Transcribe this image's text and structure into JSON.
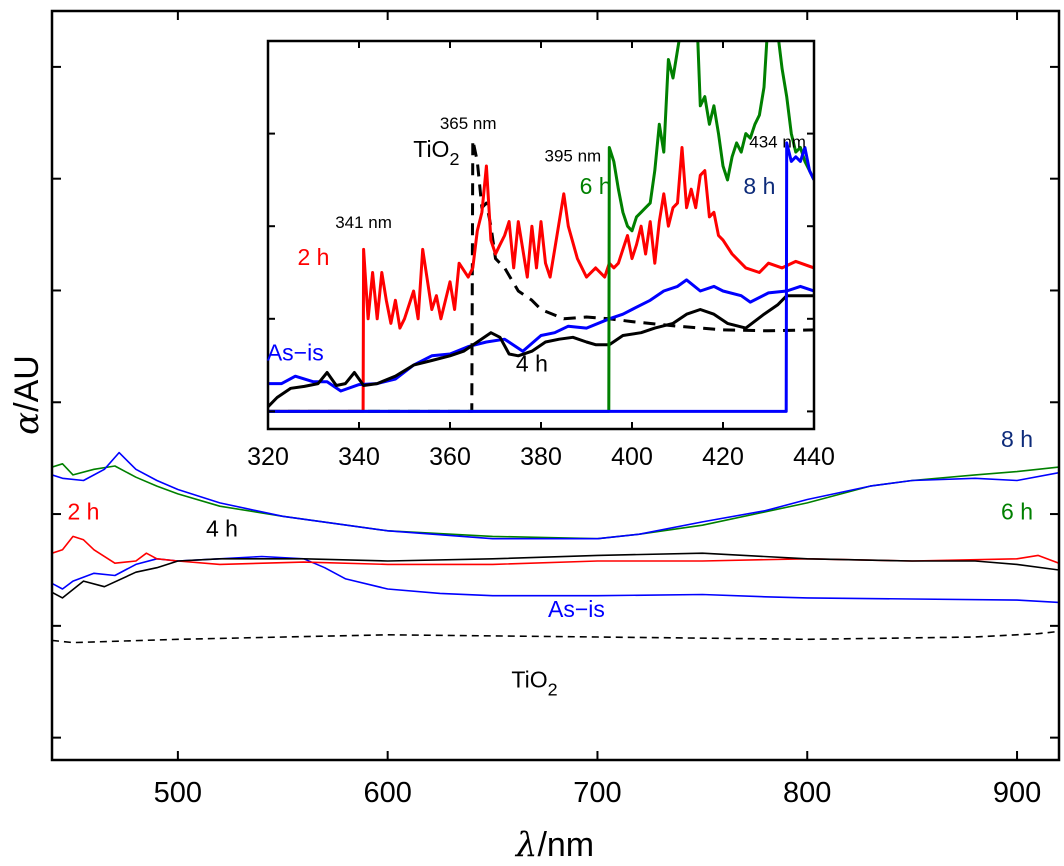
{
  "chart_data": [
    {
      "id": "main",
      "type": "line",
      "title": "",
      "xlabel": "λ/nm",
      "ylabel": "α/AU",
      "xlim": [
        440,
        920
      ],
      "ylim": [
        -0.2,
        6.5
      ],
      "xticks": [
        500,
        600,
        700,
        800,
        900
      ],
      "xtick_labels": [
        "500",
        "600",
        "700",
        "800",
        "900"
      ],
      "yticks": [
        0,
        1,
        2,
        3,
        4,
        5,
        6
      ],
      "ytick_labels_shown": false,
      "grid": false,
      "series": [
        {
          "name": "TiO2",
          "label": "TiO",
          "label_sub": "2",
          "color": "#000000",
          "dashed": true,
          "x": [
            440,
            450,
            500,
            600,
            700,
            800,
            880,
            910,
            920
          ],
          "y": [
            0.87,
            0.85,
            0.88,
            0.92,
            0.9,
            0.88,
            0.9,
            0.93,
            0.95
          ]
        },
        {
          "name": "As-is",
          "label": "As−is",
          "color": "#0000ff",
          "dashed": false,
          "x": [
            440,
            445,
            450,
            460,
            470,
            480,
            490,
            500,
            520,
            540,
            560,
            570,
            580,
            600,
            625,
            650,
            700,
            750,
            780,
            800,
            850,
            900,
            920
          ],
          "y": [
            1.38,
            1.33,
            1.4,
            1.47,
            1.45,
            1.55,
            1.6,
            1.58,
            1.6,
            1.62,
            1.6,
            1.52,
            1.42,
            1.33,
            1.29,
            1.27,
            1.27,
            1.28,
            1.26,
            1.25,
            1.24,
            1.23,
            1.21
          ]
        },
        {
          "name": "2 h",
          "label": "2 h",
          "color": "#ff0000",
          "dashed": false,
          "x": [
            440,
            445,
            450,
            455,
            460,
            470,
            480,
            485,
            490,
            500,
            520,
            560,
            600,
            650,
            700,
            750,
            800,
            850,
            900,
            910,
            920
          ],
          "y": [
            1.65,
            1.68,
            1.8,
            1.77,
            1.68,
            1.56,
            1.58,
            1.65,
            1.6,
            1.58,
            1.55,
            1.57,
            1.55,
            1.55,
            1.58,
            1.58,
            1.6,
            1.58,
            1.6,
            1.63,
            1.56
          ]
        },
        {
          "name": "4 h",
          "label": "4 h",
          "color": "#000000",
          "dashed": false,
          "x": [
            440,
            445,
            455,
            465,
            480,
            490,
            500,
            520,
            560,
            600,
            650,
            700,
            750,
            800,
            850,
            880,
            900,
            920
          ],
          "y": [
            1.3,
            1.25,
            1.4,
            1.35,
            1.48,
            1.52,
            1.58,
            1.6,
            1.6,
            1.58,
            1.6,
            1.63,
            1.65,
            1.6,
            1.58,
            1.58,
            1.55,
            1.5
          ]
        },
        {
          "name": "6 h",
          "label": "6 h",
          "color": "#008000",
          "dashed": false,
          "x": [
            440,
            445,
            450,
            460,
            470,
            480,
            490,
            500,
            520,
            550,
            600,
            650,
            700,
            720,
            750,
            780,
            800,
            830,
            850,
            880,
            900,
            920
          ],
          "y": [
            2.42,
            2.45,
            2.35,
            2.4,
            2.43,
            2.33,
            2.25,
            2.18,
            2.07,
            1.98,
            1.85,
            1.8,
            1.78,
            1.82,
            1.9,
            2.02,
            2.1,
            2.25,
            2.3,
            2.35,
            2.38,
            2.42
          ]
        },
        {
          "name": "8 h",
          "label": "8 h",
          "color": "#0000ff",
          "label_color": "#0d2b7a",
          "dashed": false,
          "x": [
            440,
            445,
            455,
            465,
            472,
            480,
            490,
            500,
            520,
            550,
            600,
            650,
            700,
            720,
            750,
            780,
            800,
            830,
            850,
            880,
            900,
            920
          ],
          "y": [
            2.35,
            2.32,
            2.3,
            2.4,
            2.55,
            2.4,
            2.3,
            2.22,
            2.1,
            1.98,
            1.85,
            1.78,
            1.78,
            1.82,
            1.93,
            2.03,
            2.13,
            2.25,
            2.3,
            2.32,
            2.3,
            2.37
          ]
        }
      ],
      "annotations": [
        {
          "text": "2 h",
          "color": "#ff0000",
          "x": 455,
          "y": 1.95
        },
        {
          "text": "4 h",
          "color": "#000000",
          "x": 521,
          "y": 1.8
        },
        {
          "text": "As−is",
          "color": "#0000ff",
          "x": 690,
          "y": 1.08
        },
        {
          "text": "TiO",
          "sub": "2",
          "color": "#000000",
          "x": 670,
          "y": 0.45
        },
        {
          "text": "8 h",
          "color": "#0d2b7a",
          "x": 900,
          "y": 2.6
        },
        {
          "text": "6 h",
          "color": "#008000",
          "x": 900,
          "y": 1.95
        }
      ]
    },
    {
      "id": "inset",
      "type": "line",
      "title": "",
      "xlabel": "",
      "ylabel": "",
      "xlim": [
        320,
        440
      ],
      "ylim": [
        -0.19,
        4.0
      ],
      "xticks": [
        320,
        340,
        360,
        380,
        400,
        420,
        440
      ],
      "xtick_labels": [
        "320",
        "340",
        "360",
        "380",
        "400",
        "420",
        "440"
      ],
      "yticks": [
        0,
        1,
        2,
        3,
        4
      ],
      "ytick_labels_shown": false,
      "grid": false,
      "series": [
        {
          "name": "TiO2",
          "color": "#000000",
          "dashed": true,
          "onset_nm": 365,
          "x": [
            320,
            364.8,
            365,
            366,
            367,
            368,
            369,
            370,
            372,
            375,
            378,
            380,
            385,
            390,
            395,
            400,
            410,
            420,
            430,
            440
          ],
          "y": [
            0,
            0,
            2.93,
            2.7,
            2.2,
            2.25,
            2.0,
            1.65,
            1.55,
            1.3,
            1.2,
            1.1,
            1.0,
            1.02,
            1.0,
            0.97,
            0.92,
            0.88,
            0.87,
            0.88
          ]
        },
        {
          "name": "2 h",
          "color": "#ff0000",
          "dashed": false,
          "onset_nm": 341,
          "x": [
            320,
            340.9,
            341,
            342,
            343,
            344,
            345,
            346,
            347,
            348,
            349,
            350,
            352,
            353,
            354,
            356,
            357,
            358,
            360,
            361,
            362,
            364,
            365,
            366,
            367,
            368,
            369,
            370,
            371,
            372,
            373,
            374,
            375,
            376,
            377,
            378,
            379,
            380,
            381,
            382,
            383,
            385,
            386,
            388,
            390,
            392,
            394,
            395,
            396,
            397,
            398,
            399,
            400,
            401,
            402,
            403,
            404,
            405,
            406,
            407,
            408,
            409,
            410,
            411,
            412,
            413,
            414,
            415,
            416,
            417,
            418,
            419,
            420,
            422,
            425,
            428,
            430,
            433,
            436,
            440
          ],
          "y": [
            0,
            0,
            1.75,
            1.0,
            1.5,
            1.0,
            1.5,
            1.2,
            0.95,
            1.2,
            0.9,
            1.0,
            1.3,
            1.0,
            1.75,
            1.1,
            1.25,
            1.0,
            1.4,
            1.1,
            1.6,
            1.45,
            1.55,
            1.95,
            2.15,
            2.65,
            1.85,
            1.7,
            1.8,
            1.9,
            2.05,
            1.55,
            2.05,
            1.75,
            1.45,
            2.0,
            1.55,
            2.05,
            1.6,
            1.45,
            1.75,
            2.35,
            2.0,
            1.65,
            1.45,
            1.55,
            1.45,
            1.6,
            1.55,
            1.6,
            1.75,
            1.9,
            1.65,
            1.8,
            2.0,
            1.7,
            2.05,
            1.6,
            2.05,
            2.35,
            2.0,
            2.2,
            2.25,
            2.85,
            2.2,
            2.4,
            2.2,
            2.55,
            2.6,
            2.1,
            2.15,
            1.9,
            1.85,
            1.7,
            1.55,
            1.5,
            1.6,
            1.55,
            1.62,
            1.55
          ]
        },
        {
          "name": "As-is",
          "color": "#0000ff",
          "dashed": false,
          "onset_nm": 320,
          "x": [
            320,
            323,
            326,
            330,
            333,
            336,
            340,
            344,
            348,
            352,
            356,
            360,
            364,
            368,
            372,
            376,
            380,
            383,
            386,
            390,
            395,
            398,
            400,
            404,
            407,
            410,
            412,
            415,
            418,
            420,
            424,
            426,
            430,
            434,
            437,
            440
          ],
          "y": [
            0.3,
            0.3,
            0.38,
            0.32,
            0.32,
            0.22,
            0.29,
            0.3,
            0.35,
            0.5,
            0.6,
            0.62,
            0.7,
            0.75,
            0.78,
            0.65,
            0.82,
            0.85,
            0.92,
            0.9,
            1.0,
            1.05,
            1.1,
            1.2,
            1.3,
            1.35,
            1.42,
            1.3,
            1.35,
            1.3,
            1.25,
            1.18,
            1.28,
            1.3,
            1.35,
            1.3
          ]
        },
        {
          "name": "4 h",
          "color": "#000000",
          "dashed": false,
          "onset_nm": 320,
          "x": [
            320,
            322,
            325,
            328,
            331,
            333,
            335,
            337,
            339,
            341,
            344,
            348,
            352,
            356,
            360,
            363,
            366,
            369,
            371,
            373,
            375,
            378,
            381,
            384,
            387,
            390,
            392,
            395,
            398,
            402,
            405,
            409,
            412,
            415,
            418,
            421,
            425,
            429,
            432,
            434,
            437,
            440
          ],
          "y": [
            0.05,
            0.15,
            0.25,
            0.27,
            0.3,
            0.42,
            0.28,
            0.3,
            0.42,
            0.28,
            0.3,
            0.38,
            0.5,
            0.55,
            0.6,
            0.65,
            0.75,
            0.85,
            0.8,
            0.62,
            0.6,
            0.65,
            0.75,
            0.78,
            0.8,
            0.75,
            0.72,
            0.72,
            0.82,
            0.85,
            0.9,
            0.95,
            1.05,
            1.1,
            1.05,
            0.95,
            0.9,
            1.05,
            1.15,
            1.25,
            1.25,
            1.25
          ]
        },
        {
          "name": "6 h",
          "color": "#008000",
          "dashed": false,
          "onset_nm": 395,
          "x": [
            320,
            394.9,
            395,
            396,
            397,
            398,
            399,
            400,
            401,
            402,
            403,
            404,
            405,
            406,
            407,
            408,
            409,
            410,
            411,
            412,
            413,
            414,
            415,
            416,
            417,
            418,
            419,
            420,
            421,
            422,
            423,
            424,
            425,
            426,
            427,
            428,
            429,
            430,
            431,
            432,
            433,
            434,
            435,
            436,
            437,
            438,
            439,
            440
          ],
          "y": [
            0,
            0,
            2.85,
            2.7,
            2.4,
            2.15,
            2.0,
            1.95,
            2.1,
            2.15,
            2.2,
            2.25,
            2.6,
            3.1,
            2.8,
            3.8,
            3.6,
            3.9,
            4.2,
            4.5,
            4.3,
            4.6,
            3.3,
            3.4,
            3.1,
            3.3,
            3.0,
            2.65,
            2.5,
            2.75,
            2.9,
            2.8,
            3.0,
            2.95,
            3.1,
            3.2,
            3.5,
            4.3,
            4.35,
            4.1,
            3.7,
            3.4,
            3.0,
            2.8,
            2.85,
            2.7,
            2.6,
            2.5
          ]
        },
        {
          "name": "8 h",
          "color": "#0000ff",
          "dashed": false,
          "onset_nm": 434,
          "x": [
            320,
            433.9,
            434,
            435,
            436,
            437,
            438,
            439,
            440
          ],
          "y": [
            0,
            0,
            2.9,
            2.7,
            2.75,
            2.7,
            2.85,
            2.6,
            2.5
          ]
        }
      ],
      "annotations": [
        {
          "text": "341 nm",
          "color": "#000000",
          "x": 341,
          "y": 1.98,
          "size": "small"
        },
        {
          "text": "2 h",
          "color": "#ff0000",
          "x": 330,
          "y": 1.58
        },
        {
          "text": "365 nm",
          "color": "#000000",
          "x": 364,
          "y": 3.05,
          "size": "small"
        },
        {
          "text": "TiO",
          "sub": "2",
          "color": "#000000",
          "x": 357,
          "y": 2.75
        },
        {
          "text": "395 nm",
          "color": "#000000",
          "x": 387,
          "y": 2.7,
          "size": "small"
        },
        {
          "text": "6 h",
          "color": "#008000",
          "x": 392,
          "y": 2.35
        },
        {
          "text": "434 nm",
          "color": "#000000",
          "x": 432,
          "y": 2.85,
          "size": "small"
        },
        {
          "text": "8 h",
          "color": "#0d2b7a",
          "x": 428,
          "y": 2.35
        },
        {
          "text": "As−is",
          "color": "#0000ff",
          "x": 326,
          "y": 0.55
        },
        {
          "text": "4 h",
          "color": "#000000",
          "x": 378,
          "y": 0.43
        }
      ]
    }
  ]
}
